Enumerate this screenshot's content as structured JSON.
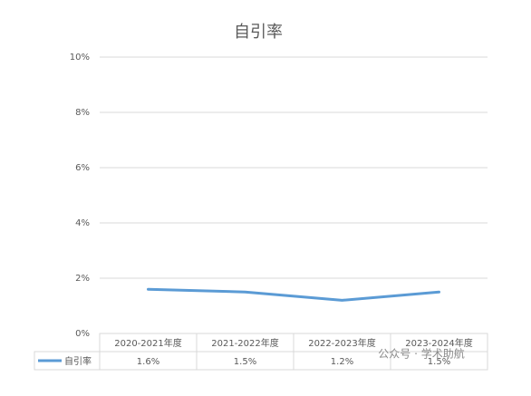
{
  "chart_data": {
    "type": "line",
    "title": "自引率",
    "categories": [
      "2020-2021年度",
      "2021-2022年度",
      "2022-2023年度",
      "2023-2024年度"
    ],
    "series": [
      {
        "name": "自引率",
        "color": "#5b9bd5",
        "values": [
          1.6,
          1.5,
          1.2,
          1.5
        ],
        "value_labels": [
          "1.6%",
          "1.5%",
          "1.2%",
          "1.5%"
        ]
      }
    ],
    "ylim": [
      0,
      10
    ],
    "yticks": [
      {
        "value": 0,
        "label": "0%"
      },
      {
        "value": 2,
        "label": "2%"
      },
      {
        "value": 4,
        "label": "4%"
      },
      {
        "value": 6,
        "label": "6%"
      },
      {
        "value": 8,
        "label": "8%"
      },
      {
        "value": 10,
        "label": "10%"
      }
    ],
    "grid": true,
    "data_table": true
  },
  "watermark": "公众号 · 学术助航"
}
